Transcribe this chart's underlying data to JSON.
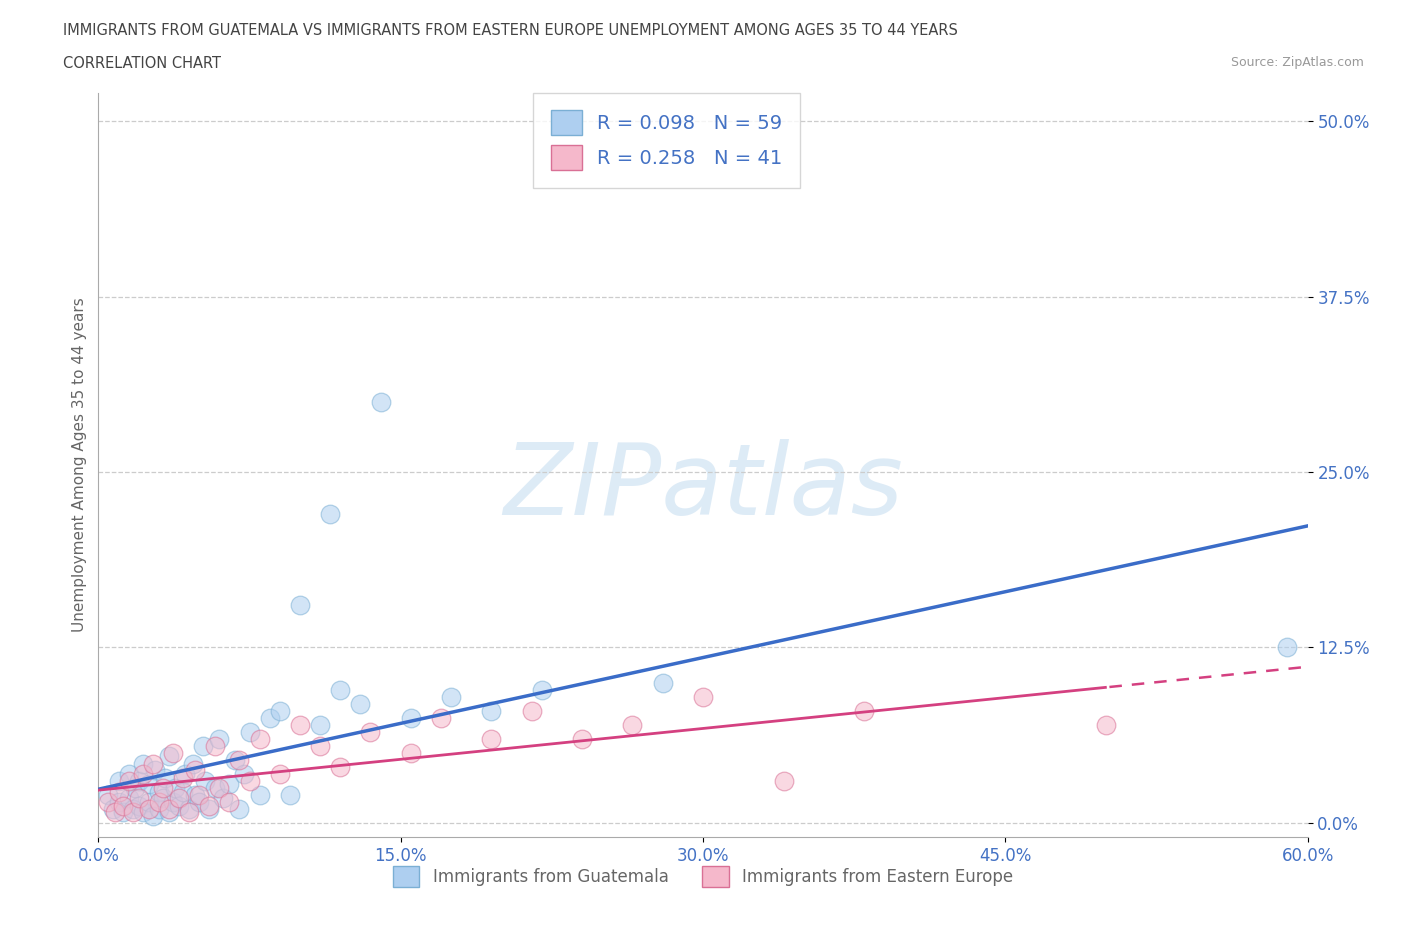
{
  "title_line1": "IMMIGRANTS FROM GUATEMALA VS IMMIGRANTS FROM EASTERN EUROPE UNEMPLOYMENT AMONG AGES 35 TO 44 YEARS",
  "title_line2": "CORRELATION CHART",
  "source": "Source: ZipAtlas.com",
  "ylabel": "Unemployment Among Ages 35 to 44 years",
  "xlim": [
    0.0,
    0.6
  ],
  "ylim": [
    -0.01,
    0.52
  ],
  "yticks": [
    0.0,
    0.125,
    0.25,
    0.375,
    0.5
  ],
  "ytick_labels": [
    "0.0%",
    "12.5%",
    "25.0%",
    "37.5%",
    "50.0%"
  ],
  "xticks": [
    0.0,
    0.15,
    0.3,
    0.45,
    0.6
  ],
  "xtick_labels": [
    "0.0%",
    "15.0%",
    "30.0%",
    "45.0%",
    "60.0%"
  ],
  "series1_label": "Immigrants from Guatemala",
  "series2_label": "Immigrants from Eastern Europe",
  "series1_face": "#AECFF0",
  "series1_edge": "#7BAFD4",
  "series2_face": "#F5B8CB",
  "series2_edge": "#D97095",
  "series1_R": "0.098",
  "series1_N": "59",
  "series2_R": "0.258",
  "series2_N": "41",
  "trend1_color": "#3A6CC8",
  "trend2_color": "#D44080",
  "legend_text_color": "#4472C4",
  "watermark_text": "ZIPatlas",
  "watermark_color": "#D8E8F5",
  "background_color": "#FFFFFF",
  "grid_color": "#CCCCCC",
  "title_color": "#444444",
  "axis_label_color": "#666666",
  "tick_color": "#4472C4",
  "series1_x": [
    0.005,
    0.007,
    0.01,
    0.01,
    0.012,
    0.015,
    0.015,
    0.017,
    0.018,
    0.02,
    0.02,
    0.022,
    0.022,
    0.025,
    0.025,
    0.027,
    0.028,
    0.03,
    0.03,
    0.032,
    0.033,
    0.035,
    0.035,
    0.037,
    0.038,
    0.04,
    0.042,
    0.043,
    0.045,
    0.047,
    0.048,
    0.05,
    0.052,
    0.053,
    0.055,
    0.058,
    0.06,
    0.062,
    0.065,
    0.068,
    0.07,
    0.072,
    0.075,
    0.08,
    0.085,
    0.09,
    0.095,
    0.1,
    0.11,
    0.115,
    0.12,
    0.13,
    0.14,
    0.155,
    0.175,
    0.195,
    0.22,
    0.28,
    0.59
  ],
  "series1_y": [
    0.02,
    0.01,
    0.015,
    0.03,
    0.008,
    0.018,
    0.035,
    0.01,
    0.025,
    0.012,
    0.03,
    0.008,
    0.042,
    0.015,
    0.028,
    0.005,
    0.038,
    0.01,
    0.022,
    0.018,
    0.032,
    0.008,
    0.048,
    0.015,
    0.025,
    0.012,
    0.022,
    0.035,
    0.01,
    0.042,
    0.02,
    0.015,
    0.055,
    0.03,
    0.01,
    0.025,
    0.06,
    0.018,
    0.028,
    0.045,
    0.01,
    0.035,
    0.065,
    0.02,
    0.075,
    0.08,
    0.02,
    0.155,
    0.07,
    0.22,
    0.095,
    0.085,
    0.3,
    0.075,
    0.09,
    0.08,
    0.095,
    0.1,
    0.125
  ],
  "series2_x": [
    0.005,
    0.008,
    0.01,
    0.012,
    0.015,
    0.017,
    0.02,
    0.022,
    0.025,
    0.027,
    0.03,
    0.032,
    0.035,
    0.037,
    0.04,
    0.042,
    0.045,
    0.048,
    0.05,
    0.055,
    0.058,
    0.06,
    0.065,
    0.07,
    0.075,
    0.08,
    0.09,
    0.1,
    0.11,
    0.12,
    0.135,
    0.155,
    0.17,
    0.195,
    0.215,
    0.24,
    0.265,
    0.3,
    0.34,
    0.38,
    0.5
  ],
  "series2_y": [
    0.015,
    0.008,
    0.022,
    0.012,
    0.03,
    0.008,
    0.018,
    0.035,
    0.01,
    0.042,
    0.015,
    0.025,
    0.01,
    0.05,
    0.018,
    0.032,
    0.008,
    0.038,
    0.02,
    0.012,
    0.055,
    0.025,
    0.015,
    0.045,
    0.03,
    0.06,
    0.035,
    0.07,
    0.055,
    0.04,
    0.065,
    0.05,
    0.075,
    0.06,
    0.08,
    0.06,
    0.07,
    0.09,
    0.03,
    0.08,
    0.07
  ]
}
